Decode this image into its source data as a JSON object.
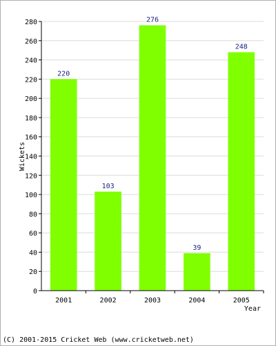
{
  "chart_data": {
    "type": "bar",
    "categories": [
      "2001",
      "2002",
      "2003",
      "2004",
      "2005"
    ],
    "values": [
      220,
      103,
      276,
      39,
      248
    ],
    "data_labels": [
      "220",
      "103",
      "276",
      "39",
      "248"
    ],
    "title": "",
    "xlabel": "Year",
    "ylabel": "Wickets",
    "ylim": [
      0,
      280
    ],
    "yticks": [
      "0",
      "20",
      "40",
      "60",
      "80",
      "100",
      "120",
      "140",
      "160",
      "180",
      "200",
      "220",
      "240",
      "260",
      "280"
    ],
    "grid": true,
    "bar_color": "#80ff00"
  },
  "footer": {
    "copyright": "(C) 2001-2015 Cricket Web (www.cricketweb.net)"
  }
}
